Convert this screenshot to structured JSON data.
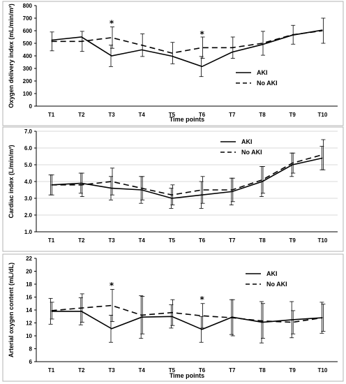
{
  "chart_data": [
    {
      "type": "line",
      "title": "",
      "xlabel": "Time points",
      "ylabel": "Oxygen delivery index (mL/min/m²)",
      "categories": [
        "T1",
        "T2",
        "T3",
        "T4",
        "T5",
        "T6",
        "T7",
        "T8",
        "T9",
        "T10"
      ],
      "ylim": [
        0,
        800
      ],
      "yticks": [
        "0",
        "100",
        "200",
        "300",
        "400",
        "500",
        "600",
        "700",
        "800"
      ],
      "grid": false,
      "legend_position": "right-middle",
      "series": [
        {
          "name": "AKI",
          "style": "solid",
          "values": [
            525,
            550,
            400,
            448,
            398,
            315,
            430,
            490,
            565,
            605
          ],
          "err": [
            0,
            0,
            85,
            0,
            0,
            80,
            0,
            0,
            0,
            0
          ]
        },
        {
          "name": "No AKI",
          "style": "dashed",
          "values": [
            515,
            515,
            545,
            485,
            422,
            465,
            465,
            500,
            568,
            600
          ],
          "err": [
            75,
            80,
            85,
            90,
            85,
            85,
            85,
            95,
            75,
            100
          ]
        }
      ],
      "annotations": [
        {
          "category": "T3",
          "text": "*",
          "value": 658
        },
        {
          "category": "T6",
          "text": "*",
          "value": 572
        }
      ]
    },
    {
      "type": "line",
      "title": "",
      "xlabel": "",
      "ylabel": "Cardiac index (L/min/m²)",
      "categories": [
        "T1",
        "T2",
        "T3",
        "T4",
        "T5",
        "T6",
        "T7",
        "T8",
        "T9",
        "T10"
      ],
      "ylim": [
        1.0,
        7.0
      ],
      "yticks": [
        "1.0",
        "2.0",
        "3.0",
        "4.0",
        "5.0",
        "6.0",
        "7.0"
      ],
      "grid": true,
      "legend_position": "top-right",
      "series": [
        {
          "name": "AKI",
          "style": "solid",
          "values": [
            3.8,
            3.9,
            3.6,
            3.5,
            3.0,
            3.2,
            3.4,
            4.0,
            5.0,
            5.4
          ],
          "err": [
            0.6,
            0.6,
            0.7,
            0.8,
            0.6,
            0.8,
            0.8,
            0.9,
            0.7,
            0.7
          ]
        },
        {
          "name": "No AKI",
          "style": "dashed",
          "values": [
            3.8,
            3.8,
            4.0,
            3.6,
            3.2,
            3.5,
            3.5,
            4.1,
            5.1,
            5.6
          ],
          "err": [
            0.6,
            0.7,
            0.8,
            0.7,
            0.6,
            0.8,
            0.7,
            0.8,
            0.6,
            0.9
          ]
        }
      ],
      "annotations": []
    },
    {
      "type": "line",
      "title": "",
      "xlabel": "Time points",
      "ylabel": "Arterial oxygen content (mL/dL)",
      "categories": [
        "T1",
        "T2",
        "T3",
        "T4",
        "T5",
        "T6",
        "T7",
        "T8",
        "T9",
        "T10"
      ],
      "ylim": [
        6,
        22
      ],
      "yticks": [
        "6",
        "8",
        "10",
        "12",
        "14",
        "16",
        "18",
        "20",
        "22"
      ],
      "grid": false,
      "legend_position": "top-right",
      "series": [
        {
          "name": "AKI",
          "style": "solid",
          "values": [
            13.8,
            13.8,
            11.1,
            12.9,
            13.0,
            11.0,
            12.9,
            12.1,
            12.5,
            12.8
          ],
          "err": [
            2.0,
            2.1,
            2.1,
            3.3,
            1.8,
            2.0,
            2.7,
            3.2,
            2.8,
            2.4
          ]
        },
        {
          "name": "No AKI",
          "style": "dashed",
          "values": [
            13.9,
            14.3,
            14.7,
            13.2,
            13.6,
            13.1,
            12.8,
            12.3,
            12.1,
            12.8
          ],
          "err": [
            1.3,
            2.2,
            2.5,
            2.9,
            2.0,
            1.9,
            2.8,
            2.7,
            1.8,
            2.1
          ]
        }
      ],
      "annotations": [
        {
          "category": "T3",
          "text": "*",
          "value": 17.8
        },
        {
          "category": "T6",
          "text": "*",
          "value": 15.6
        }
      ]
    }
  ]
}
